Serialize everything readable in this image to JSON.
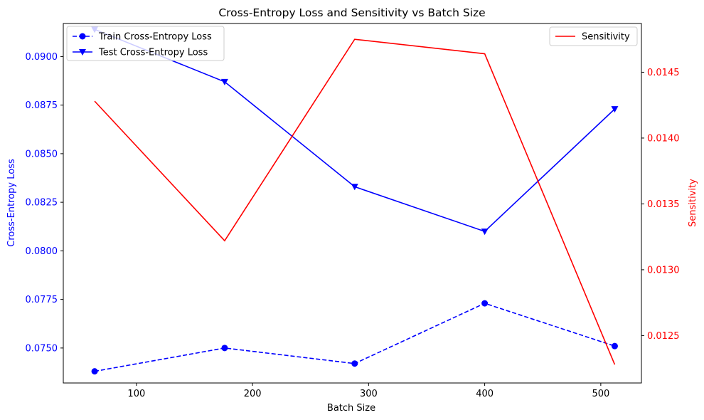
{
  "chart_data": {
    "type": "line",
    "title": "Cross-Entropy Loss and Sensitivity vs Batch Size",
    "xlabel": "Batch Size",
    "ylabel_left": "Cross-Entropy Loss",
    "ylabel_right": "Sensitivity",
    "x": [
      64,
      176,
      288,
      400,
      512
    ],
    "xlim": [
      37,
      535
    ],
    "xticks": [
      100,
      200,
      300,
      400,
      500
    ],
    "ylim_left": [
      0.0732,
      0.0917
    ],
    "yticks_left": [
      "0.0750",
      "0.0775",
      "0.0800",
      "0.0825",
      "0.0850",
      "0.0875",
      "0.0900"
    ],
    "ylim_right": [
      0.01214,
      0.01487
    ],
    "yticks_right": [
      "0.0125",
      "0.0130",
      "0.0135",
      "0.0140",
      "0.0145"
    ],
    "series": [
      {
        "name": "Train Cross-Entropy Loss",
        "axis": "left",
        "color": "#0000ff",
        "linestyle": "dashed",
        "marker": "circle",
        "values": [
          0.0738,
          0.075,
          0.0742,
          0.0773,
          0.0751
        ]
      },
      {
        "name": "Test Cross-Entropy Loss",
        "axis": "left",
        "color": "#0000ff",
        "linestyle": "solid",
        "marker": "triangle-down",
        "values": [
          0.0914,
          0.0887,
          0.0833,
          0.081,
          0.0873
        ]
      },
      {
        "name": "Sensitivity",
        "axis": "right",
        "color": "#ff0000",
        "linestyle": "solid",
        "marker": "none",
        "values": [
          0.01428,
          0.01322,
          0.01475,
          0.01464,
          0.01228
        ]
      }
    ],
    "legend_left": {
      "placement": "top-left",
      "items": [
        "Train Cross-Entropy Loss",
        "Test Cross-Entropy Loss"
      ]
    },
    "legend_right": {
      "placement": "top-right",
      "items": [
        "Sensitivity"
      ]
    },
    "grid": false,
    "colors": {
      "left_axis": "#0000ff",
      "right_axis": "#ff0000"
    }
  }
}
